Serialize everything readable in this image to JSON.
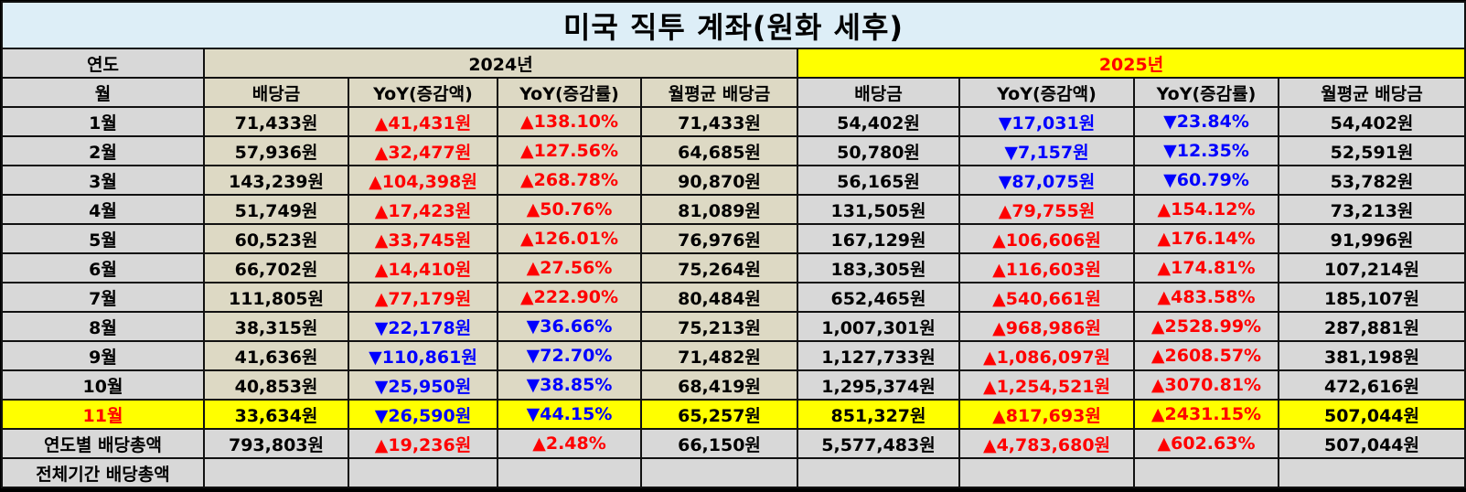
{
  "title": "미국 직투 계좌(원화 세후)",
  "header": {
    "year_label": "연도",
    "month_label": "월",
    "year_2024": "2024년",
    "year_2025": "2025년",
    "columns": [
      "배당금",
      "YoY(증감액)",
      "YoY(증감률)",
      "월평균 배당금"
    ]
  },
  "colors": {
    "up": "#ff0000",
    "down": "#0000ff",
    "highlight": "#ffff00",
    "tan": "#ddd9c4",
    "label_grey": "#d8d8d8",
    "title_bg": "#ddeef7"
  },
  "rows": [
    {
      "month": "1월",
      "d24": "71,433원",
      "a24": "▲41,431원",
      "p24": "▲138.10%",
      "m24": "71,433원",
      "d25": "54,402원",
      "a25": "▼17,031원",
      "p25": "▼23.84%",
      "m25": "54,402원",
      "s24": "up",
      "s25": "down"
    },
    {
      "month": "2월",
      "d24": "57,936원",
      "a24": "▲32,477원",
      "p24": "▲127.56%",
      "m24": "64,685원",
      "d25": "50,780원",
      "a25": "▼7,157원",
      "p25": "▼12.35%",
      "m25": "52,591원",
      "s24": "up",
      "s25": "down"
    },
    {
      "month": "3월",
      "d24": "143,239원",
      "a24": "▲104,398원",
      "p24": "▲268.78%",
      "m24": "90,870원",
      "d25": "56,165원",
      "a25": "▼87,075원",
      "p25": "▼60.79%",
      "m25": "53,782원",
      "s24": "up",
      "s25": "down"
    },
    {
      "month": "4월",
      "d24": "51,749원",
      "a24": "▲17,423원",
      "p24": "▲50.76%",
      "m24": "81,089원",
      "d25": "131,505원",
      "a25": "▲79,755원",
      "p25": "▲154.12%",
      "m25": "73,213원",
      "s24": "up",
      "s25": "up"
    },
    {
      "month": "5월",
      "d24": "60,523원",
      "a24": "▲33,745원",
      "p24": "▲126.01%",
      "m24": "76,976원",
      "d25": "167,129원",
      "a25": "▲106,606원",
      "p25": "▲176.14%",
      "m25": "91,996원",
      "s24": "up",
      "s25": "up"
    },
    {
      "month": "6월",
      "d24": "66,702원",
      "a24": "▲14,410원",
      "p24": "▲27.56%",
      "m24": "75,264원",
      "d25": "183,305원",
      "a25": "▲116,603원",
      "p25": "▲174.81%",
      "m25": "107,214원",
      "s24": "up",
      "s25": "up"
    },
    {
      "month": "7월",
      "d24": "111,805원",
      "a24": "▲77,179원",
      "p24": "▲222.90%",
      "m24": "80,484원",
      "d25": "652,465원",
      "a25": "▲540,661원",
      "p25": "▲483.58%",
      "m25": "185,107원",
      "s24": "up",
      "s25": "up"
    },
    {
      "month": "8월",
      "d24": "38,315원",
      "a24": "▼22,178원",
      "p24": "▼36.66%",
      "m24": "75,213원",
      "d25": "1,007,301원",
      "a25": "▲968,986원",
      "p25": "▲2528.99%",
      "m25": "287,881원",
      "s24": "down",
      "s25": "up"
    },
    {
      "month": "9월",
      "d24": "41,636원",
      "a24": "▼110,861원",
      "p24": "▼72.70%",
      "m24": "71,482원",
      "d25": "1,127,733원",
      "a25": "▲1,086,097원",
      "p25": "▲2608.57%",
      "m25": "381,198원",
      "s24": "down",
      "s25": "up"
    },
    {
      "month": "10월",
      "d24": "40,853원",
      "a24": "▼25,950원",
      "p24": "▼38.85%",
      "m24": "68,419원",
      "d25": "1,295,374원",
      "a25": "▲1,254,521원",
      "p25": "▲3070.81%",
      "m25": "472,616원",
      "s24": "down",
      "s25": "up"
    },
    {
      "month": "11월",
      "d24": "33,634원",
      "a24": "▼26,590원",
      "p24": "▼44.15%",
      "m24": "65,257원",
      "d25": "851,327원",
      "a25": "▲817,693원",
      "p25": "▲2431.15%",
      "m25": "507,044원",
      "s24": "down",
      "s25": "up"
    }
  ],
  "totals": {
    "label": "연도별 배당총액",
    "d24": "793,803원",
    "a24": "▲19,236원",
    "p24": "▲2.48%",
    "m24": "66,150원",
    "d25": "5,577,483원",
    "a25": "▲4,783,680원",
    "p25": "▲602.63%",
    "m25": "507,044원"
  },
  "grand_total": {
    "label": "전체기간 배당총액"
  }
}
